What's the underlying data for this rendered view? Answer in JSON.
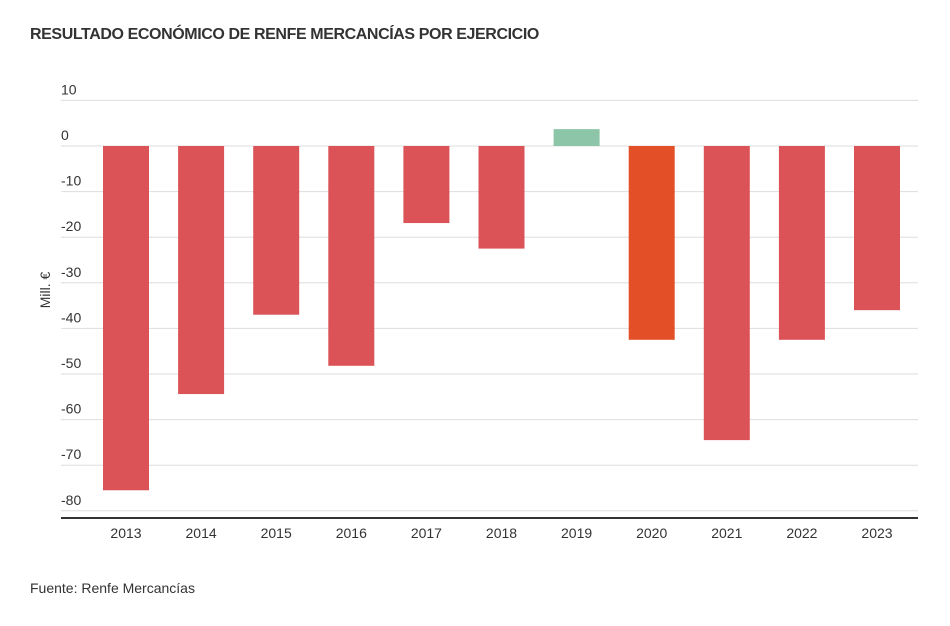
{
  "chart_data": {
    "type": "bar",
    "title": "RESULTADO ECONÓMICO DE RENFE MERCANCÍAS POR EJERCICIO",
    "xlabel": "",
    "ylabel": "Mill. €",
    "ylim": [
      -80,
      10
    ],
    "yticks": [
      10,
      0,
      -10,
      -20,
      -30,
      -40,
      -50,
      -60,
      -70,
      -80
    ],
    "grid": true,
    "categories": [
      "2013",
      "2014",
      "2015",
      "2016",
      "2017",
      "2018",
      "2019",
      "2020",
      "2021",
      "2022",
      "2023"
    ],
    "values": [
      -75.5,
      -54.4,
      -37,
      -48.2,
      -16.9,
      -22.5,
      3.7,
      -42.5,
      -64.5,
      -42.5,
      -36
    ],
    "colors": {
      "negative": "#db5357",
      "positive": "#8cc5a8",
      "highlight": "#e34f26"
    },
    "highlight_category": "2020",
    "source": "Fuente: Renfe Mercancías"
  }
}
